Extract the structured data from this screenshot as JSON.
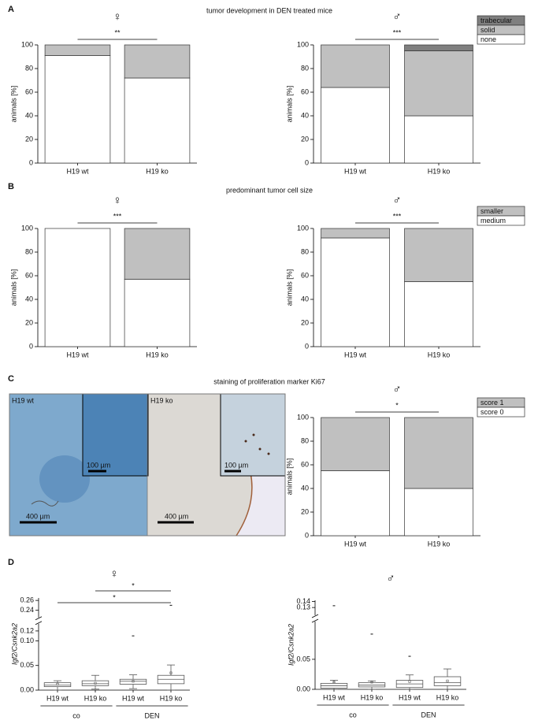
{
  "panels": [
    {
      "letter": "A",
      "title": "tumor development in DEN treated mice"
    },
    {
      "letter": "B",
      "title": "predominant tumor cell size"
    },
    {
      "letter": "C",
      "title": "staining of proliferation marker Ki67"
    },
    {
      "letter": "D"
    }
  ],
  "micrograph": {
    "labels": [
      "H19 wt",
      "H19 ko"
    ],
    "inset_scale": "100 µm",
    "scale": "400 µm"
  },
  "chart_data": [
    {
      "type": "bar",
      "stacked": true,
      "symbol": "♀",
      "significance": "**",
      "ylabel": "animals [%]",
      "categories": [
        "H19 wt",
        "H19 ko"
      ],
      "series": [
        {
          "color": "#ffffff",
          "values": [
            91,
            72
          ]
        },
        {
          "color": "#c0c0c0",
          "values": [
            9,
            28
          ]
        }
      ],
      "ylim": [
        0,
        100
      ],
      "yticks": [
        0,
        20,
        40,
        60,
        80,
        100
      ],
      "legend": false
    },
    {
      "type": "bar",
      "stacked": true,
      "symbol": "♂",
      "significance": "***",
      "ylabel": "animals [%]",
      "categories": [
        "H19 wt",
        "H19 ko"
      ],
      "series": [
        {
          "name": "none",
          "color": "#ffffff",
          "values": [
            64,
            40
          ]
        },
        {
          "name": "solid",
          "color": "#c0c0c0",
          "values": [
            36,
            55
          ]
        },
        {
          "name": "trabecular",
          "color": "#7f7f7f",
          "values": [
            0,
            5
          ]
        }
      ],
      "ylim": [
        0,
        100
      ],
      "yticks": [
        0,
        20,
        40,
        60,
        80,
        100
      ],
      "legend": true
    },
    {
      "type": "bar",
      "stacked": true,
      "symbol": "♀",
      "significance": "***",
      "ylabel": "animals [%]",
      "categories": [
        "H19 wt",
        "H19 ko"
      ],
      "series": [
        {
          "color": "#ffffff",
          "values": [
            100,
            57
          ]
        },
        {
          "color": "#c0c0c0",
          "values": [
            0,
            43
          ]
        }
      ],
      "ylim": [
        0,
        100
      ],
      "yticks": [
        0,
        20,
        40,
        60,
        80,
        100
      ],
      "legend": false
    },
    {
      "type": "bar",
      "stacked": true,
      "symbol": "♂",
      "significance": "***",
      "ylabel": "animals [%]",
      "categories": [
        "H19 wt",
        "H19 ko"
      ],
      "series": [
        {
          "name": "medium",
          "color": "#ffffff",
          "values": [
            92,
            55
          ]
        },
        {
          "name": "smaller",
          "color": "#c0c0c0",
          "values": [
            8,
            45
          ]
        }
      ],
      "ylim": [
        0,
        100
      ],
      "yticks": [
        0,
        20,
        40,
        60,
        80,
        100
      ],
      "legend": true
    },
    {
      "type": "bar",
      "stacked": true,
      "symbol": "♂",
      "significance": "*",
      "ylabel": "animals [%]",
      "categories": [
        "H19 wt",
        "H19 ko"
      ],
      "series": [
        {
          "name": "score 0",
          "color": "#ffffff",
          "values": [
            55,
            40
          ]
        },
        {
          "name": "score 1",
          "color": "#c0c0c0",
          "values": [
            45,
            60
          ]
        }
      ],
      "ylim": [
        0,
        100
      ],
      "yticks": [
        0,
        20,
        40,
        60,
        80,
        100
      ],
      "legend": true
    },
    {
      "type": "box",
      "symbol": "♀",
      "ylabel": "Igf2/Csnk2a2",
      "categories": [
        "H19 wt",
        "H19 ko",
        "H19 wt",
        "H19 ko"
      ],
      "groups": [
        "co",
        "DEN"
      ],
      "boxes": [
        {
          "whislo": 0.0,
          "q1": 0.007,
          "med": 0.01,
          "q3": 0.015,
          "whishi": 0.019,
          "mean": 0.012,
          "fliers": []
        },
        {
          "whislo": 0.002,
          "q1": 0.009,
          "med": 0.013,
          "q3": 0.019,
          "whishi": 0.03,
          "mean": 0.014,
          "fliers": []
        },
        {
          "whislo": 0.003,
          "q1": 0.012,
          "med": 0.018,
          "q3": 0.022,
          "whishi": 0.031,
          "mean": 0.018,
          "fliers": [
            0.11
          ]
        },
        {
          "whislo": 0.0,
          "q1": 0.013,
          "med": 0.022,
          "q3": 0.03,
          "whishi": 0.051,
          "mean": 0.035,
          "fliers": [
            0.25
          ]
        }
      ],
      "brackets": [
        {
          "from": 0,
          "to": 3,
          "label": "*"
        },
        {
          "from": 1,
          "to": 3,
          "label": "*"
        }
      ],
      "ylim": [
        0,
        0.265
      ],
      "axis_break": [
        0.125,
        0.235
      ],
      "yticks": [
        {
          "value": 0,
          "label": "0.00"
        },
        {
          "value": 0.05,
          "label": "0.05"
        },
        {
          "value": 0.1,
          "label": "0.10"
        },
        {
          "value": 0.12,
          "label": "0.12"
        },
        {
          "value": 0.24,
          "label": "0.24"
        },
        {
          "value": 0.26,
          "label": "0.26"
        }
      ]
    },
    {
      "type": "box",
      "symbol": "♂",
      "ylabel": "Igf2/Csnk2a2",
      "categories": [
        "H19 wt",
        "H19 ko",
        "H19 wt",
        "H19 ko"
      ],
      "groups": [
        "co",
        "DEN"
      ],
      "boxes": [
        {
          "whislo": 0.0,
          "q1": 0.002,
          "med": 0.006,
          "q3": 0.01,
          "whishi": 0.015,
          "mean": 0.012,
          "fliers": [
            0.133
          ]
        },
        {
          "whislo": 0.0,
          "q1": 0.004,
          "med": 0.007,
          "q3": 0.011,
          "whishi": 0.014,
          "mean": 0.012,
          "fliers": [
            0.092
          ]
        },
        {
          "whislo": 0.0,
          "q1": 0.003,
          "med": 0.009,
          "q3": 0.015,
          "whishi": 0.024,
          "mean": 0.013,
          "fliers": [
            0.055
          ]
        },
        {
          "whislo": 0.0,
          "q1": 0.006,
          "med": 0.011,
          "q3": 0.021,
          "whishi": 0.034,
          "mean": 0.014,
          "fliers": []
        }
      ],
      "brackets": [],
      "ylim": [
        0,
        0.142
      ],
      "axis_break": [
        0.105,
        0.125
      ],
      "yticks": [
        {
          "value": 0,
          "label": "0.00"
        },
        {
          "value": 0.05,
          "label": "0.05"
        },
        {
          "value": 0.13,
          "label": "0.13"
        },
        {
          "value": 0.14,
          "label": "0.14"
        }
      ]
    }
  ]
}
